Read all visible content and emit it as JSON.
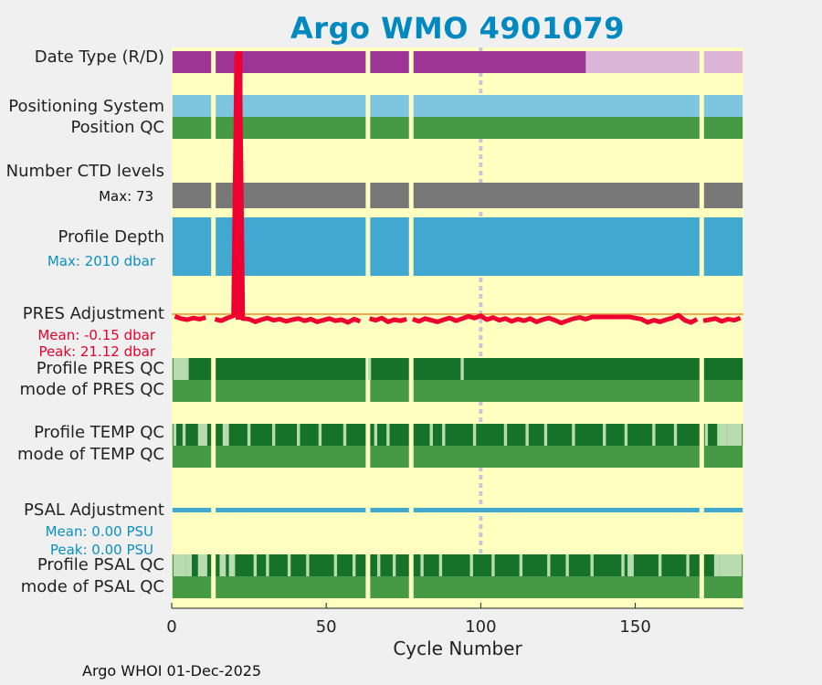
{
  "title": "Argo WMO 4901079",
  "footer": "Argo WHOI 01-Dec-2025",
  "colors": {
    "background": "#ffffc0",
    "real_time": "#9c3593",
    "delayed": "#dcb6d7",
    "positioning": "#7ec6df",
    "qc_good": "#469a46",
    "qc_dark_good": "#157228",
    "qc_light": "#b8dcb0",
    "ctd_levels": "#787878",
    "profile_depth": "#41a9cf",
    "pres_adjust": "#ee0030",
    "psal_adjust": "#41a9cf",
    "title": "#0088c0",
    "gap_line": "#c8c8d4"
  },
  "rows": {
    "date_type": "Date Type (R/D)",
    "positioning_system": "Positioning System",
    "position_qc": "Position QC",
    "number_ctd_levels": "Number CTD levels",
    "ctd_max": "Max: 73",
    "profile_depth": "Profile Depth",
    "depth_max": "Max: 2010 dbar",
    "pres_adjustment": "PRES Adjustment",
    "pres_mean": "Mean: -0.15 dbar",
    "pres_peak": "Peak: 21.12 dbar",
    "profile_pres_qc": "Profile PRES QC",
    "mode_pres_qc": "mode of PRES QC",
    "profile_temp_qc": "Profile TEMP QC",
    "mode_temp_qc": "mode of TEMP QC",
    "psal_adjustment": "PSAL Adjustment",
    "psal_mean": "Mean: 0.00 PSU",
    "psal_peak": "Peak: 0.00 PSU",
    "profile_psal_qc": "Profile PSAL QC",
    "mode_psal_qc": "mode of PSAL QC"
  },
  "chart_data": {
    "type": "table",
    "title": "Argo WMO 4901079",
    "xlabel": "Cycle Number",
    "xlim": [
      0,
      185
    ],
    "xticks": [
      0,
      50,
      100,
      150
    ],
    "grid": false,
    "max_cycle": 185,
    "gaps": [
      13,
      63,
      77,
      171
    ],
    "date_type_delayed_from_cycle": 134,
    "ctd_levels_max": 73,
    "profile_depth_max_dbar": 2010,
    "pres_adjustment": {
      "mean_dbar": -0.15,
      "peak_dbar": 21.12,
      "peak_cycles": [
        21,
        22
      ],
      "series": [
        {
          "x": 1,
          "y": 0.1
        },
        {
          "x": 3,
          "y": -0.3
        },
        {
          "x": 5,
          "y": -0.5
        },
        {
          "x": 7,
          "y": -0.2
        },
        {
          "x": 9,
          "y": -0.4
        },
        {
          "x": 11,
          "y": -0.1
        },
        {
          "x": 14,
          "y": -0.4
        },
        {
          "x": 16,
          "y": -0.7
        },
        {
          "x": 18,
          "y": -0.2
        },
        {
          "x": 20,
          "y": 0.2
        },
        {
          "x": 21,
          "y": 21.12
        },
        {
          "x": 22,
          "y": 21.0
        },
        {
          "x": 23,
          "y": -0.3
        },
        {
          "x": 25,
          "y": -0.4
        },
        {
          "x": 27,
          "y": -0.9
        },
        {
          "x": 29,
          "y": -0.5
        },
        {
          "x": 31,
          "y": -0.2
        },
        {
          "x": 33,
          "y": -0.6
        },
        {
          "x": 35,
          "y": -0.4
        },
        {
          "x": 37,
          "y": -0.8
        },
        {
          "x": 39,
          "y": -0.5
        },
        {
          "x": 41,
          "y": -0.3
        },
        {
          "x": 43,
          "y": -0.7
        },
        {
          "x": 45,
          "y": -0.4
        },
        {
          "x": 47,
          "y": -0.9
        },
        {
          "x": 49,
          "y": -0.6
        },
        {
          "x": 51,
          "y": -0.3
        },
        {
          "x": 53,
          "y": -0.7
        },
        {
          "x": 55,
          "y": -0.5
        },
        {
          "x": 57,
          "y": -1.0
        },
        {
          "x": 59,
          "y": -0.4
        },
        {
          "x": 61,
          "y": -0.8
        },
        {
          "x": 64,
          "y": -0.3
        },
        {
          "x": 66,
          "y": -0.6
        },
        {
          "x": 68,
          "y": -0.2
        },
        {
          "x": 70,
          "y": -0.9
        },
        {
          "x": 72,
          "y": -0.5
        },
        {
          "x": 74,
          "y": -0.7
        },
        {
          "x": 76,
          "y": -0.4
        },
        {
          "x": 78,
          "y": -0.4
        },
        {
          "x": 80,
          "y": -0.8
        },
        {
          "x": 82,
          "y": -0.3
        },
        {
          "x": 84,
          "y": -0.6
        },
        {
          "x": 86,
          "y": -0.9
        },
        {
          "x": 88,
          "y": -0.5
        },
        {
          "x": 90,
          "y": -0.2
        },
        {
          "x": 92,
          "y": -0.7
        },
        {
          "x": 94,
          "y": -0.3
        },
        {
          "x": 96,
          "y": 0.1
        },
        {
          "x": 98,
          "y": -0.2
        },
        {
          "x": 100,
          "y": 0.2
        },
        {
          "x": 102,
          "y": -0.5
        },
        {
          "x": 104,
          "y": -0.1
        },
        {
          "x": 106,
          "y": -0.6
        },
        {
          "x": 108,
          "y": -0.3
        },
        {
          "x": 110,
          "y": -0.8
        },
        {
          "x": 112,
          "y": -0.4
        },
        {
          "x": 114,
          "y": -0.7
        },
        {
          "x": 116,
          "y": -0.3
        },
        {
          "x": 118,
          "y": -0.9
        },
        {
          "x": 120,
          "y": -0.5
        },
        {
          "x": 122,
          "y": -0.2
        },
        {
          "x": 124,
          "y": -0.6
        },
        {
          "x": 126,
          "y": -1.1
        },
        {
          "x": 128,
          "y": -0.7
        },
        {
          "x": 130,
          "y": -0.3
        },
        {
          "x": 132,
          "y": -0.1
        },
        {
          "x": 134,
          "y": -0.4
        },
        {
          "x": 136,
          "y": 0.0
        },
        {
          "x": 148,
          "y": 0.0
        },
        {
          "x": 150,
          "y": -0.2
        },
        {
          "x": 152,
          "y": -0.4
        },
        {
          "x": 154,
          "y": -1.0
        },
        {
          "x": 156,
          "y": -0.6
        },
        {
          "x": 158,
          "y": -0.9
        },
        {
          "x": 160,
          "y": -0.5
        },
        {
          "x": 162,
          "y": -0.2
        },
        {
          "x": 164,
          "y": 0.3
        },
        {
          "x": 166,
          "y": -0.6
        },
        {
          "x": 168,
          "y": -1.0
        },
        {
          "x": 170,
          "y": -0.4
        },
        {
          "x": 172,
          "y": -0.7
        },
        {
          "x": 174,
          "y": -0.5
        },
        {
          "x": 176,
          "y": -0.3
        },
        {
          "x": 178,
          "y": -0.8
        },
        {
          "x": 180,
          "y": -0.4
        },
        {
          "x": 182,
          "y": -0.6
        },
        {
          "x": 184,
          "y": -0.2
        }
      ]
    },
    "psal_adjustment": {
      "mean_psu": 0.0,
      "peak_psu": 0.0
    },
    "profile_pres_qc_light_cycles": [
      [
        1,
        5
      ],
      [
        64,
        64
      ],
      [
        94,
        94
      ]
    ],
    "profile_temp_qc_light_cycles": [
      [
        1,
        1
      ],
      [
        4,
        4
      ],
      [
        9,
        11
      ],
      [
        17,
        18
      ],
      [
        25,
        25
      ],
      [
        33,
        33
      ],
      [
        41,
        41
      ],
      [
        48,
        48
      ],
      [
        56,
        56
      ],
      [
        66,
        66
      ],
      [
        70,
        70
      ],
      [
        84,
        84
      ],
      [
        88,
        88
      ],
      [
        98,
        98
      ],
      [
        108,
        108
      ],
      [
        115,
        115
      ],
      [
        121,
        121
      ],
      [
        130,
        130
      ],
      [
        140,
        140
      ],
      [
        147,
        147
      ],
      [
        156,
        156
      ],
      [
        163,
        163
      ],
      [
        173,
        173
      ],
      [
        177,
        179
      ],
      [
        180,
        184
      ]
    ],
    "profile_psal_qc_light_cycles": [
      [
        1,
        4
      ],
      [
        5,
        6
      ],
      [
        9,
        11
      ],
      [
        16,
        17
      ],
      [
        19,
        20
      ],
      [
        27,
        27
      ],
      [
        31,
        31
      ],
      [
        38,
        38
      ],
      [
        44,
        44
      ],
      [
        53,
        53
      ],
      [
        59,
        59
      ],
      [
        67,
        67
      ],
      [
        72,
        72
      ],
      [
        81,
        81
      ],
      [
        87,
        87
      ],
      [
        97,
        97
      ],
      [
        104,
        104
      ],
      [
        113,
        113
      ],
      [
        122,
        122
      ],
      [
        128,
        128
      ],
      [
        136,
        136
      ],
      [
        146,
        146
      ],
      [
        148,
        149
      ],
      [
        158,
        158
      ],
      [
        167,
        167
      ],
      [
        176,
        177
      ],
      [
        178,
        184
      ]
    ]
  }
}
